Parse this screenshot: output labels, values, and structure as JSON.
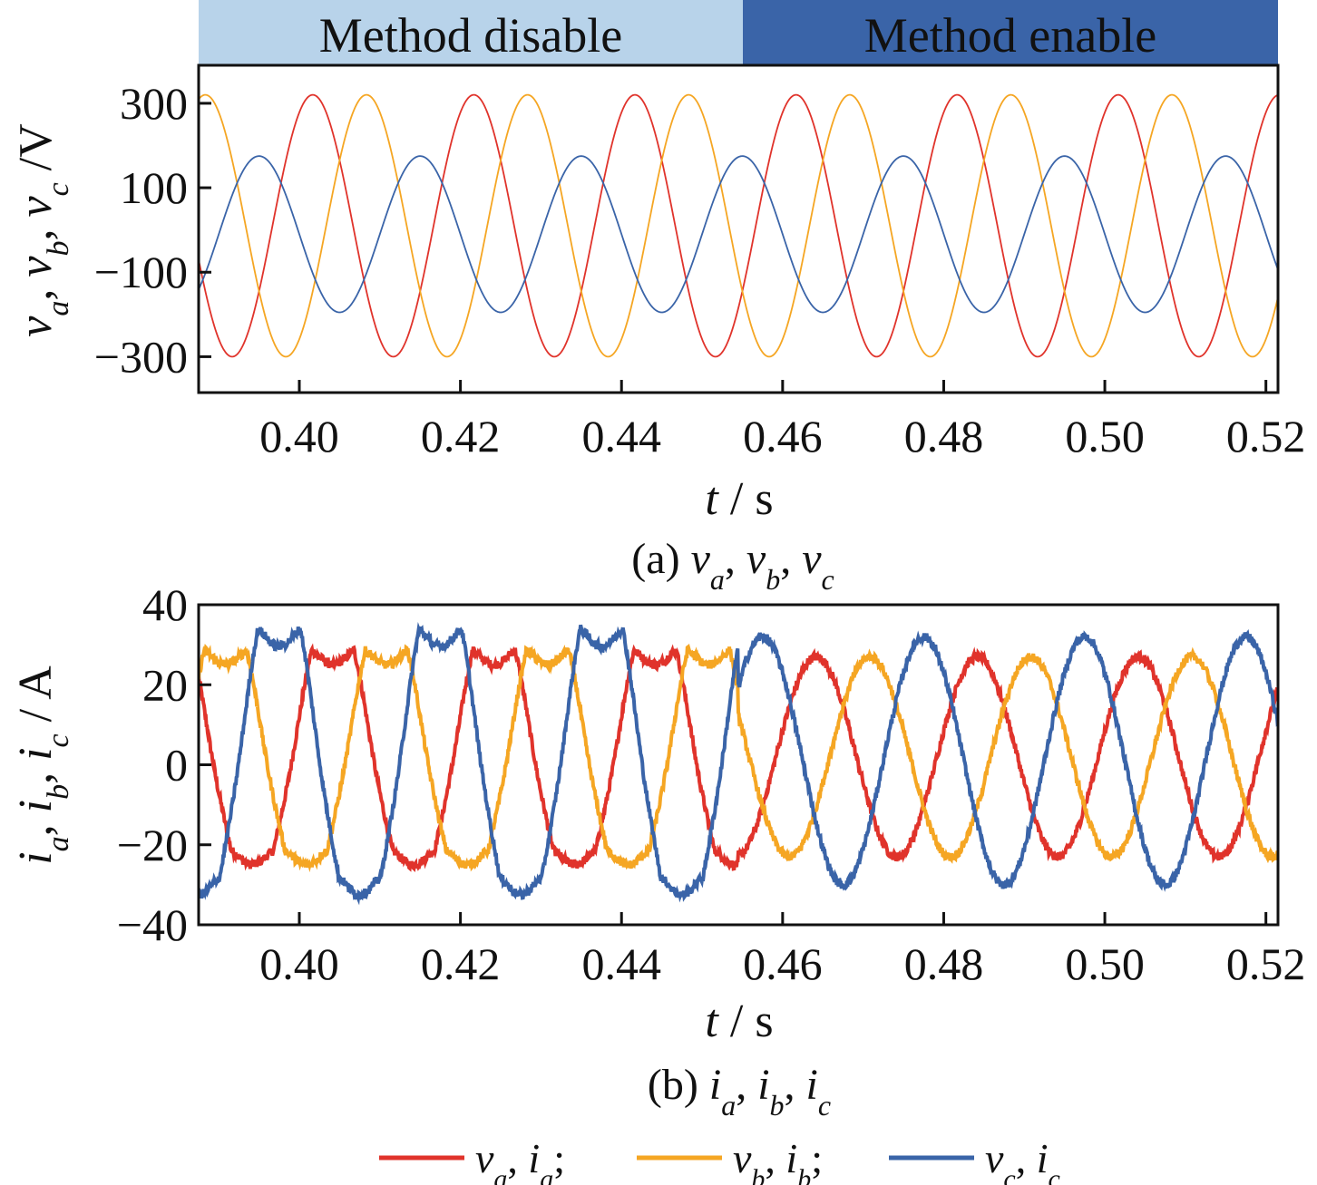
{
  "colors": {
    "va_ia": "#e0332b",
    "vb_ib": "#f5a623",
    "vc_ic": "#3a64a8",
    "band_disable": "#b8d3ea",
    "band_enable": "#3a64a8"
  },
  "bands": {
    "disable_label": "Method disable",
    "enable_label": "Method enable",
    "switch_time": 0.4545
  },
  "legend": {
    "sep": ";",
    "entries": [
      {
        "v": "v",
        "i": "i",
        "sub": "a"
      },
      {
        "v": "v",
        "i": "i",
        "sub": "b"
      },
      {
        "v": "v",
        "i": "i",
        "sub": "c"
      }
    ]
  },
  "chart_data": [
    {
      "type": "line",
      "caption_prefix": "(a)",
      "caption_var": "v",
      "xlabel": {
        "var": "t",
        "unit": "/ s"
      },
      "ylabel": {
        "var": "v",
        "unit": "/V"
      },
      "xlim": [
        0.3875,
        0.5215
      ],
      "ylim": [
        -385,
        390
      ],
      "xticks": [
        "0.40",
        "0.42",
        "0.44",
        "0.46",
        "0.48",
        "0.50",
        "0.52"
      ],
      "yticks": [
        "300",
        "100",
        "−100",
        "−300"
      ],
      "series": [
        {
          "name": "va",
          "amplitude": 310,
          "offset": 10,
          "frequency_hz": 50,
          "phase_deg": 60
        },
        {
          "name": "vb",
          "amplitude": 310,
          "offset": 10,
          "frequency_hz": 50,
          "phase_deg": -60
        },
        {
          "name": "vc",
          "amplitude": 185,
          "offset": -10,
          "frequency_hz": 50,
          "phase_deg": 180
        }
      ]
    },
    {
      "type": "line",
      "caption_prefix": "(b)",
      "caption_var": "i",
      "xlabel": {
        "var": "t",
        "unit": "/ s"
      },
      "ylabel": {
        "var": "i",
        "unit": "/ A"
      },
      "xlim": [
        0.3875,
        0.5215
      ],
      "ylim": [
        -40,
        40
      ],
      "xticks": [
        "0.40",
        "0.42",
        "0.44",
        "0.46",
        "0.48",
        "0.50",
        "0.52"
      ],
      "yticks": [
        "40",
        "20",
        "0",
        "−20",
        "−40"
      ],
      "series": [
        {
          "name": "ia",
          "amplitude": 25,
          "offset": 2,
          "frequency_hz": 50,
          "phase_deg": 15,
          "distorted_before": 0.4545
        },
        {
          "name": "ib",
          "amplitude": 25,
          "offset": 2,
          "frequency_hz": 50,
          "phase_deg": -105,
          "distorted_before": 0.4545
        },
        {
          "name": "ic",
          "amplitude": 31,
          "offset": 1,
          "frequency_hz": 50,
          "phase_deg": 135,
          "distorted_before": 0.4545
        }
      ]
    }
  ]
}
